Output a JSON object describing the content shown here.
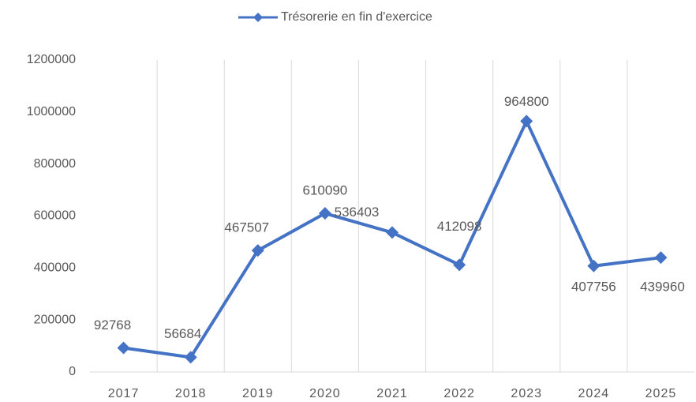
{
  "chart_data": {
    "type": "line",
    "categories": [
      "2017",
      "2018",
      "2019",
      "2020",
      "2021",
      "2022",
      "2023",
      "2024",
      "2025"
    ],
    "series": [
      {
        "name": "Trésorerie en fin d'exercice",
        "color": "#4472c4",
        "values": [
          92768,
          56684,
          467507,
          610090,
          536403,
          412098,
          964800,
          407756,
          439960
        ]
      }
    ],
    "ylim": [
      0,
      1200000
    ],
    "yticks": [
      0,
      200000,
      400000,
      600000,
      800000,
      1000000,
      1200000
    ],
    "grid": true,
    "legend": "top"
  }
}
